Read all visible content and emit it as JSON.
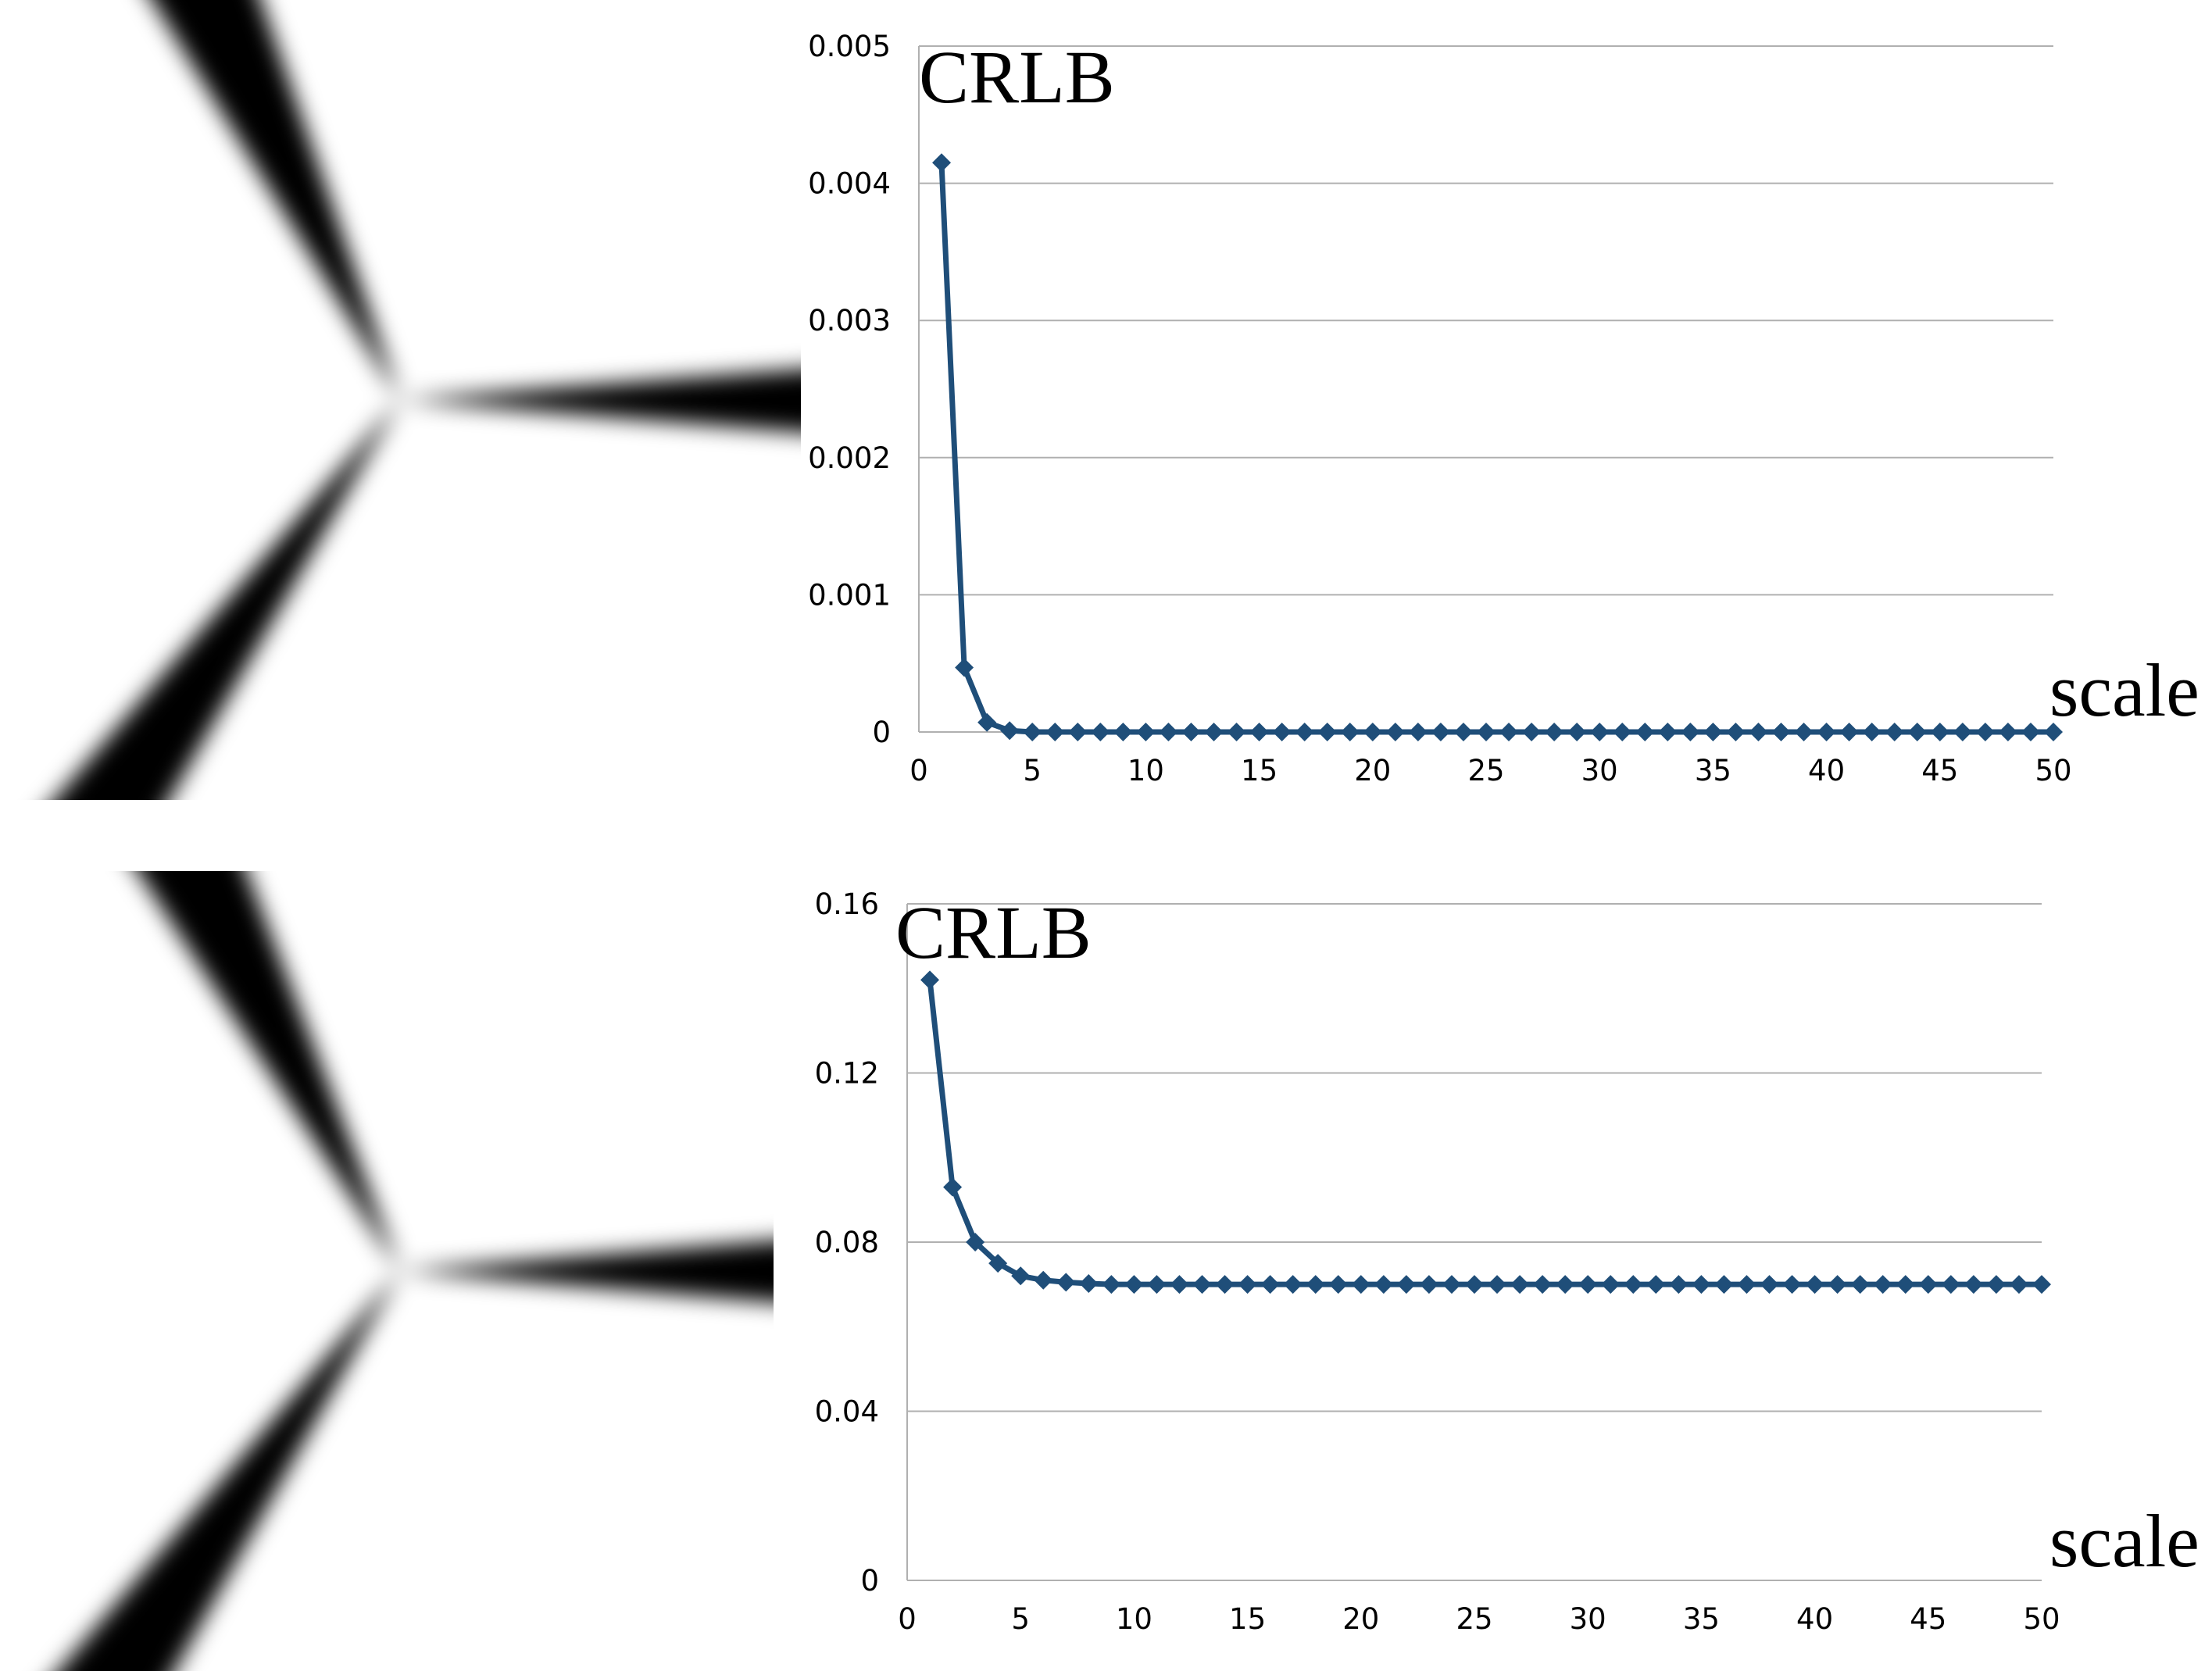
{
  "colors": {
    "series": "#1f4e79",
    "grid": "#b0b0b0",
    "axis": "#b0b0b0",
    "junction_figure": "#000000"
  },
  "chart_data": [
    {
      "type": "line",
      "marker": "diamond",
      "ylabel": "CRLB",
      "xlabel": "scale",
      "xlim": [
        0,
        50
      ],
      "ylim": [
        0,
        0.005
      ],
      "x_ticks": [
        "0",
        "5",
        "10",
        "15",
        "20",
        "25",
        "30",
        "35",
        "40",
        "45",
        "50"
      ],
      "y_ticks": [
        "0",
        "0.001",
        "0.002",
        "0.003",
        "0.004",
        "0.005"
      ],
      "grid": true,
      "x": [
        1,
        2,
        3,
        4,
        5,
        6,
        7,
        8,
        9,
        10,
        11,
        12,
        13,
        14,
        15,
        16,
        17,
        18,
        19,
        20,
        21,
        22,
        23,
        24,
        25,
        26,
        27,
        28,
        29,
        30,
        31,
        32,
        33,
        34,
        35,
        36,
        37,
        38,
        39,
        40,
        41,
        42,
        43,
        44,
        45,
        46,
        47,
        48,
        49,
        50
      ],
      "values": [
        0.00415,
        0.00047,
        7e-05,
        1e-05,
        0,
        0,
        0,
        0,
        0,
        0,
        0,
        0,
        0,
        0,
        0,
        0,
        0,
        0,
        0,
        0,
        0,
        0,
        0,
        0,
        0,
        0,
        0,
        0,
        0,
        0,
        0,
        0,
        0,
        0,
        0,
        0,
        0,
        0,
        0,
        0,
        0,
        0,
        0,
        0,
        0,
        0,
        0,
        0,
        0,
        0
      ]
    },
    {
      "type": "line",
      "marker": "diamond",
      "ylabel": "CRLB",
      "xlabel": "scale",
      "xlim": [
        0,
        50
      ],
      "ylim": [
        0,
        0.16
      ],
      "x_ticks": [
        "0",
        "5",
        "10",
        "15",
        "20",
        "25",
        "30",
        "35",
        "40",
        "45",
        "50"
      ],
      "y_ticks": [
        "0",
        "0.04",
        "0.08",
        "0.12",
        "0.16"
      ],
      "grid": true,
      "x": [
        1,
        2,
        3,
        4,
        5,
        6,
        7,
        8,
        9,
        10,
        11,
        12,
        13,
        14,
        15,
        16,
        17,
        18,
        19,
        20,
        21,
        22,
        23,
        24,
        25,
        26,
        27,
        28,
        29,
        30,
        31,
        32,
        33,
        34,
        35,
        36,
        37,
        38,
        39,
        40,
        41,
        42,
        43,
        44,
        45,
        46,
        47,
        48,
        49,
        50
      ],
      "values": [
        0.142,
        0.093,
        0.08,
        0.075,
        0.072,
        0.071,
        0.0705,
        0.0702,
        0.07,
        0.07,
        0.07,
        0.07,
        0.07,
        0.07,
        0.07,
        0.07,
        0.07,
        0.07,
        0.07,
        0.07,
        0.07,
        0.07,
        0.07,
        0.07,
        0.07,
        0.07,
        0.07,
        0.07,
        0.07,
        0.07,
        0.07,
        0.07,
        0.07,
        0.07,
        0.07,
        0.07,
        0.07,
        0.07,
        0.07,
        0.07,
        0.07,
        0.07,
        0.07,
        0.07,
        0.07,
        0.07,
        0.07,
        0.07,
        0.07,
        0.07
      ]
    }
  ]
}
